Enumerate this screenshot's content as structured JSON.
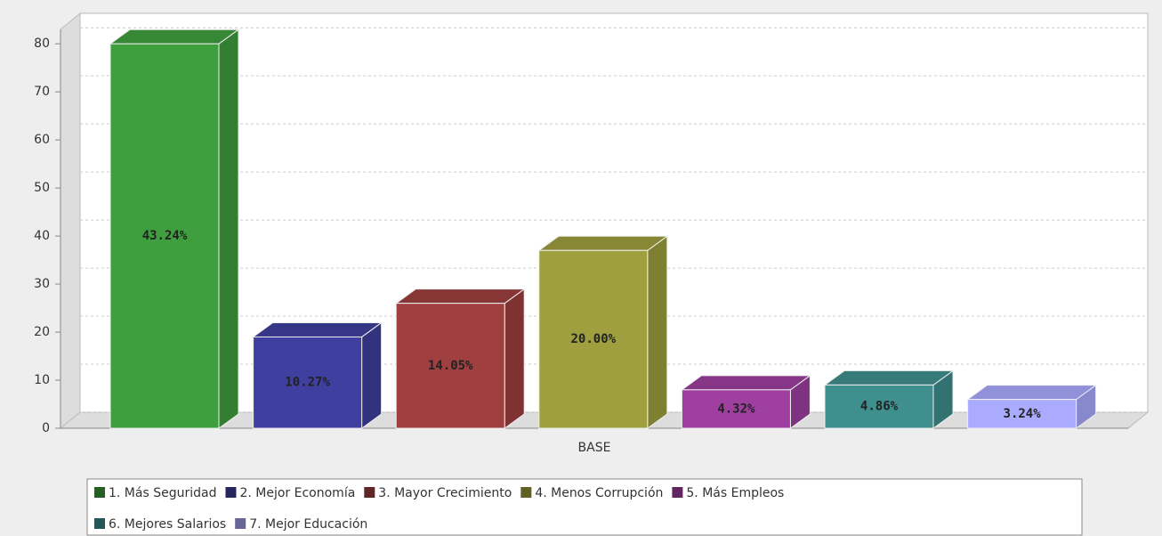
{
  "chart_data": {
    "type": "bar3d",
    "categories": [
      "BASE"
    ],
    "series": [
      {
        "name": "1. Más Seguridad",
        "color": "#3f9f3f",
        "values": [
          80
        ],
        "value_labels": [
          "43.24%"
        ]
      },
      {
        "name": "2. Mejor Economía",
        "color": "#3f3f9f",
        "values": [
          19
        ],
        "value_labels": [
          "10.27%"
        ]
      },
      {
        "name": "3. Mayor Crecimiento",
        "color": "#9f3f3f",
        "values": [
          26
        ],
        "value_labels": [
          "14.05%"
        ]
      },
      {
        "name": "4. Menos Corrupción",
        "color": "#9f9f3f",
        "values": [
          37
        ],
        "value_labels": [
          "20.00%"
        ]
      },
      {
        "name": "5. Más Empleos",
        "color": "#9f3f9f",
        "values": [
          8
        ],
        "value_labels": [
          "4.32%"
        ]
      },
      {
        "name": "6. Mejores Salarios",
        "color": "#3f8f8f",
        "values": [
          9
        ],
        "value_labels": [
          "4.86%"
        ]
      },
      {
        "name": "7. Mejor Educación",
        "color": "#aaaaff",
        "values": [
          6
        ],
        "value_labels": [
          "3.24%"
        ]
      }
    ],
    "ylim": [
      0,
      83
    ],
    "yticks": [
      0,
      10,
      20,
      30,
      40,
      50,
      60,
      70,
      80
    ],
    "grid": true,
    "legend": "bottom"
  }
}
